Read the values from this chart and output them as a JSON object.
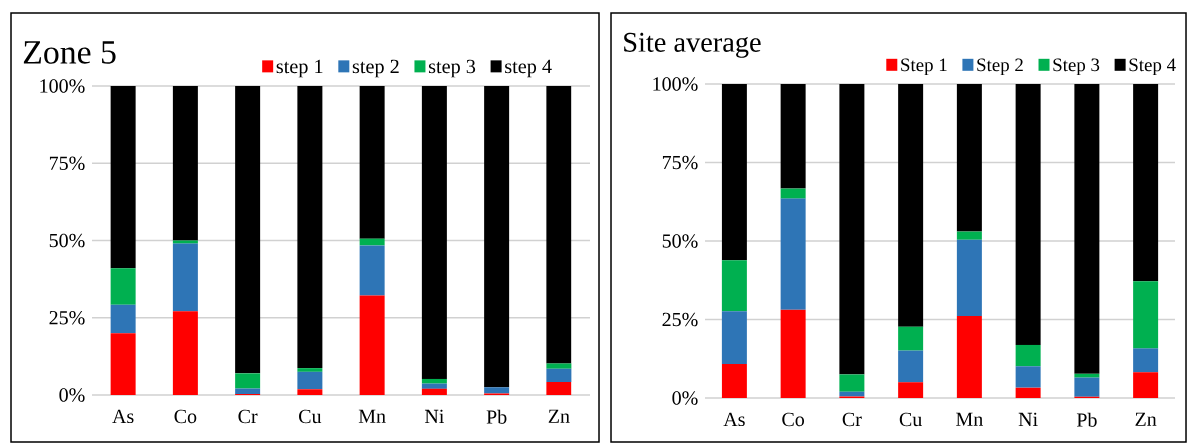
{
  "chart_data": [
    {
      "type": "bar",
      "stacked": true,
      "title": "Zone 5",
      "categories": [
        "As",
        "Co",
        "Cr",
        "Cu",
        "Mn",
        "Ni",
        "Pb",
        "Zn"
      ],
      "series": [
        {
          "name": "step 1",
          "color": "#ff0000",
          "values": [
            20.0,
            27.1,
            0.3,
            1.9,
            32.2,
            2.0,
            0.5,
            4.2
          ]
        },
        {
          "name": "step 2",
          "color": "#2e75b6",
          "values": [
            9.2,
            21.9,
            1.8,
            5.6,
            16.2,
            1.7,
            2.0,
            4.3
          ]
        },
        {
          "name": "step 3",
          "color": "#00b050",
          "values": [
            11.8,
            1.0,
            4.9,
            1.2,
            2.2,
            1.5,
            null,
            1.7
          ]
        },
        {
          "name": "step 4",
          "color": "#000000",
          "values": [
            59.0,
            50.0,
            93.0,
            91.3,
            49.4,
            94.8,
            97.5,
            89.8
          ]
        }
      ],
      "ylim": [
        0,
        100
      ],
      "yticks": [
        {
          "value": 0,
          "label": "0%"
        },
        {
          "value": 25,
          "label": "25%"
        },
        {
          "value": 50,
          "label": "50%"
        },
        {
          "value": 75,
          "label": "75%"
        },
        {
          "value": 100,
          "label": "100%"
        }
      ],
      "grid": "y",
      "legend": "top"
    },
    {
      "type": "bar",
      "stacked": true,
      "title": "Site average",
      "categories": [
        "As",
        "Co",
        "Cr",
        "Cu",
        "Mn",
        "Ni",
        "Pb",
        "Zn"
      ],
      "series": [
        {
          "name": "Step 1",
          "color": "#ff0000",
          "values": [
            10.8,
            28.1,
            0.5,
            5.0,
            26.1,
            3.3,
            0.4,
            8.2
          ]
        },
        {
          "name": "Step 2",
          "color": "#2e75b6",
          "values": [
            16.8,
            35.4,
            1.5,
            10.1,
            24.3,
            6.8,
            6.1,
            7.6
          ]
        },
        {
          "name": "Step 3",
          "color": "#00b050",
          "values": [
            16.3,
            3.2,
            5.5,
            7.6,
            2.6,
            6.8,
            1.2,
            21.4
          ]
        },
        {
          "name": "Step 4",
          "color": "#000000",
          "values": [
            56.1,
            33.3,
            92.5,
            77.3,
            47.0,
            83.1,
            92.3,
            62.8
          ]
        }
      ],
      "ylim": [
        0,
        100
      ],
      "yticks": [
        {
          "value": 0,
          "label": "0%"
        },
        {
          "value": 25,
          "label": "25%"
        },
        {
          "value": 50,
          "label": "50%"
        },
        {
          "value": 75,
          "label": "75%"
        },
        {
          "value": 100,
          "label": "100%"
        }
      ],
      "grid": "y",
      "legend": "top"
    }
  ]
}
